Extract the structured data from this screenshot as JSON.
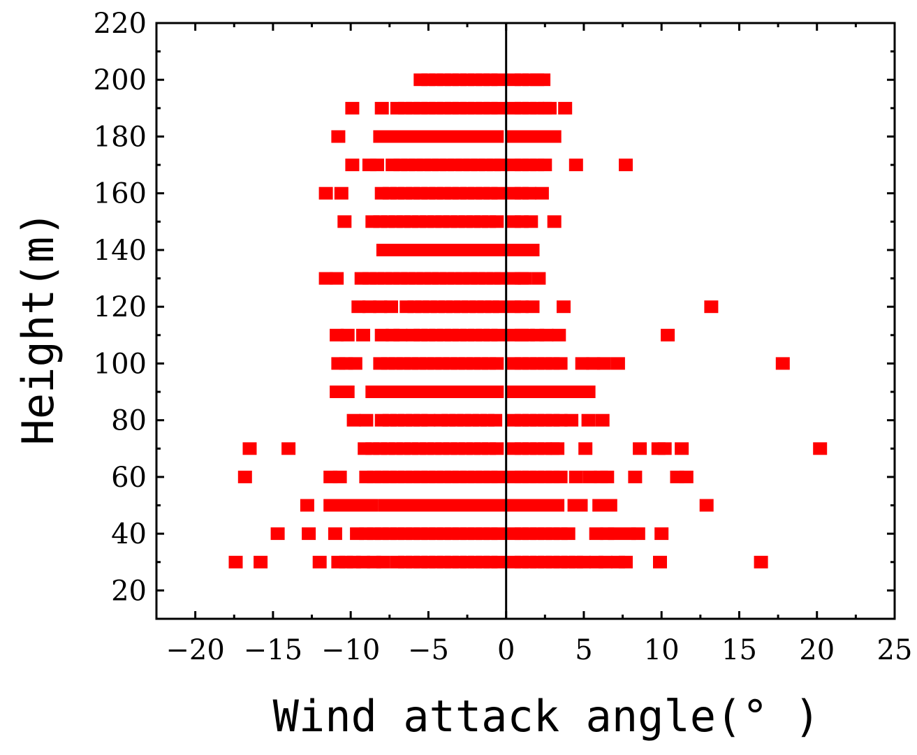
{
  "chart_data": {
    "type": "scatter",
    "title": "",
    "xlabel": "Wind attack angle(° )",
    "ylabel": "Height(m)",
    "xlim": [
      -22.5,
      25
    ],
    "ylim": [
      10,
      220
    ],
    "x_ticks": [
      -20,
      -15,
      -10,
      -5,
      0,
      5,
      10,
      15,
      20,
      25
    ],
    "x_tick_labels": [
      "−20",
      "−15",
      "−10",
      "−5",
      "0",
      "5",
      "10",
      "15",
      "20",
      "25"
    ],
    "y_ticks": [
      20,
      40,
      60,
      80,
      100,
      120,
      140,
      160,
      180,
      200,
      220
    ],
    "y_tick_labels": [
      "20",
      "40",
      "60",
      "80",
      "100",
      "120",
      "140",
      "160",
      "180",
      "200",
      "220"
    ],
    "grid": false,
    "legend": false,
    "reference_line_x": 0,
    "marker_color": "#ff0000",
    "axis_color": "#000000",
    "series": [
      {
        "marker": "square",
        "rows": [
          {
            "height": 30,
            "x": [
              -17.4,
              -15.8,
              -12.0,
              -10.8,
              -10.3,
              -9.8,
              -9.2,
              -8.5,
              -7.9,
              -7.0,
              -6.5,
              -6.0,
              -5.5,
              -5.0,
              -4.5,
              -4.0,
              -3.5,
              -3.0,
              -2.5,
              -2.0,
              -1.5,
              -1.0,
              -0.5,
              0.5,
              1.0,
              1.5,
              2.0,
              2.5,
              3.0,
              3.5,
              4.0,
              4.5,
              5.0,
              5.8,
              6.4,
              7.2,
              7.7,
              9.9,
              16.4
            ]
          },
          {
            "height": 40,
            "x": [
              -14.7,
              -12.7,
              -11.0,
              -9.6,
              -9.0,
              -8.5,
              -8.0,
              -7.5,
              -7.0,
              -6.5,
              -6.0,
              -5.5,
              -5.0,
              -4.5,
              -4.0,
              -3.5,
              -3.0,
              -2.5,
              -2.0,
              -1.5,
              -1.0,
              -0.5,
              0.5,
              1.0,
              1.5,
              2.0,
              2.5,
              3.0,
              3.5,
              4.0,
              5.8,
              6.5,
              7.0,
              7.9,
              8.5,
              10.0
            ]
          },
          {
            "height": 50,
            "x": [
              -12.8,
              -11.3,
              -10.8,
              -10.2,
              -9.7,
              -9.2,
              -8.7,
              -7.8,
              -7.3,
              -6.8,
              -6.3,
              -5.8,
              -5.3,
              -4.8,
              -4.3,
              -3.8,
              -3.3,
              -2.8,
              -2.3,
              -1.8,
              -1.3,
              -0.8,
              -0.3,
              0.5,
              1.0,
              1.5,
              2.0,
              2.5,
              3.0,
              3.3,
              4.4,
              4.8,
              6.0,
              6.7,
              12.9
            ]
          },
          {
            "height": 60,
            "x": [
              -16.8,
              -11.3,
              -10.7,
              -9.0,
              -8.5,
              -8.0,
              -7.5,
              -7.0,
              -6.5,
              -6.0,
              -5.5,
              -5.0,
              -4.5,
              -4.0,
              -3.5,
              -3.0,
              -2.5,
              -2.0,
              -1.5,
              -1.0,
              -0.5,
              0.5,
              1.0,
              1.5,
              2.0,
              2.5,
              3.0,
              3.5,
              4.5,
              5.4,
              6.1,
              6.5,
              8.3,
              11.0,
              11.6
            ]
          },
          {
            "height": 70,
            "x": [
              -16.5,
              -14.0,
              -9.1,
              -8.6,
              -8.1,
              -7.6,
              -7.1,
              -6.6,
              -6.1,
              -5.6,
              -5.1,
              -4.6,
              -4.1,
              -3.6,
              -3.1,
              -2.6,
              -2.1,
              -1.6,
              -1.1,
              -0.6,
              0.5,
              1.0,
              1.5,
              2.0,
              2.5,
              3.0,
              3.3,
              5.1,
              8.6,
              9.8,
              10.2,
              11.3,
              20.2
            ]
          },
          {
            "height": 80,
            "x": [
              -9.8,
              -9.0,
              -8.0,
              -7.5,
              -7.0,
              -6.5,
              -6.0,
              -5.5,
              -5.0,
              -4.2,
              -3.7,
              -3.2,
              -2.7,
              -2.2,
              -1.7,
              -1.2,
              -0.7,
              0.5,
              1.0,
              1.5,
              2.0,
              2.5,
              3.0,
              3.5,
              4.2,
              5.3,
              6.2
            ]
          },
          {
            "height": 90,
            "x": [
              -10.9,
              -10.2,
              -8.6,
              -8.1,
              -7.6,
              -7.1,
              -6.6,
              -6.1,
              -5.6,
              -5.1,
              -4.6,
              -4.1,
              -3.6,
              -3.1,
              -2.6,
              -2.1,
              -1.6,
              -1.1,
              -0.6,
              0.5,
              1.0,
              1.5,
              2.0,
              2.5,
              3.0,
              3.5,
              4.0,
              4.5,
              5.0,
              5.3
            ]
          },
          {
            "height": 100,
            "x": [
              -10.8,
              -10.3,
              -9.7,
              -8.1,
              -7.6,
              -7.1,
              -6.6,
              -6.1,
              -5.6,
              -5.1,
              -4.6,
              -4.1,
              -3.6,
              -3.1,
              -2.6,
              -2.1,
              -1.6,
              -1.1,
              -0.6,
              0.5,
              1.0,
              1.5,
              2.0,
              2.5,
              3.0,
              3.5,
              4.9,
              5.6,
              6.3,
              7.2,
              17.8
            ]
          },
          {
            "height": 110,
            "x": [
              -10.9,
              -10.2,
              -9.2,
              -8.0,
              -7.3,
              -6.8,
              -6.0,
              -5.5,
              -5.0,
              -4.5,
              -4.0,
              -3.5,
              -3.0,
              -2.5,
              -2.0,
              -1.5,
              -1.0,
              -0.5,
              0.5,
              1.0,
              1.4,
              2.0,
              2.6,
              3.4,
              10.4
            ]
          },
          {
            "height": 120,
            "x": [
              -9.5,
              -8.8,
              -8.1,
              -7.4,
              -6.4,
              -5.9,
              -5.4,
              -4.9,
              -4.4,
              -3.9,
              -3.4,
              -2.9,
              -2.4,
              -1.9,
              -1.4,
              -0.9,
              -0.4,
              0.5,
              1.0,
              1.7,
              3.7,
              13.2
            ]
          },
          {
            "height": 130,
            "x": [
              -11.6,
              -10.9,
              -9.3,
              -8.8,
              -8.3,
              -7.8,
              -7.3,
              -6.8,
              -6.3,
              -5.8,
              -5.3,
              -4.8,
              -4.3,
              -3.8,
              -3.3,
              -2.8,
              -2.3,
              -1.8,
              -1.3,
              -0.8,
              -0.3,
              0.5,
              1.0,
              1.2,
              2.1
            ]
          },
          {
            "height": 140,
            "x": [
              -7.9,
              -7.4,
              -6.9,
              -6.4,
              -5.9,
              -5.4,
              -4.9,
              -4.4,
              -3.9,
              -3.4,
              -2.9,
              -2.4,
              -1.9,
              -1.4,
              -0.9,
              -0.4,
              0.5,
              1.0,
              1.7
            ]
          },
          {
            "height": 150,
            "x": [
              -10.4,
              -8.6,
              -8.1,
              -7.6,
              -7.1,
              -6.6,
              -6.1,
              -5.6,
              -5.1,
              -4.6,
              -4.1,
              -3.6,
              -3.1,
              -2.6,
              -2.1,
              -1.6,
              -1.1,
              -0.6,
              0.5,
              1.0,
              1.6,
              3.1
            ]
          },
          {
            "height": 160,
            "x": [
              -11.6,
              -10.6,
              -8.0,
              -7.5,
              -7.0,
              -6.5,
              -6.0,
              -5.5,
              -5.0,
              -4.5,
              -4.0,
              -3.5,
              -3.0,
              -2.5,
              -2.0,
              -1.5,
              -1.0,
              -0.5,
              0.5,
              1.0,
              1.5,
              2.3
            ]
          },
          {
            "height": 170,
            "x": [
              -9.9,
              -8.8,
              -8.3,
              -7.3,
              -6.8,
              -6.3,
              -5.8,
              -5.3,
              -4.8,
              -4.3,
              -3.8,
              -3.3,
              -2.8,
              -2.3,
              -1.8,
              -1.3,
              -0.8,
              -0.3,
              0.5,
              1.0,
              1.5,
              2.0,
              2.5,
              4.5,
              7.7
            ]
          },
          {
            "height": 180,
            "x": [
              -10.8,
              -8.1,
              -7.6,
              -7.1,
              -6.6,
              -6.1,
              -5.6,
              -5.1,
              -4.6,
              -4.1,
              -3.6,
              -3.1,
              -2.6,
              -2.1,
              -1.6,
              -1.1,
              -0.6,
              0.5,
              1.0,
              1.5,
              2.0,
              2.5,
              3.1
            ]
          },
          {
            "height": 190,
            "x": [
              -9.9,
              -8.0,
              -7.0,
              -6.5,
              -6.0,
              -5.5,
              -5.0,
              -4.5,
              -4.0,
              -3.5,
              -3.0,
              -2.5,
              -2.0,
              -1.5,
              -1.0,
              -0.5,
              0.5,
              1.0,
              1.5,
              2.0,
              2.5,
              2.8,
              3.8
            ]
          },
          {
            "height": 200,
            "x": [
              -5.5,
              -5.0,
              -4.5,
              -4.0,
              -3.5,
              -3.0,
              -2.5,
              -2.0,
              -1.5,
              -1.0,
              -0.5,
              0.5,
              1.0,
              1.5,
              2.0,
              2.4
            ]
          }
        ]
      }
    ]
  }
}
